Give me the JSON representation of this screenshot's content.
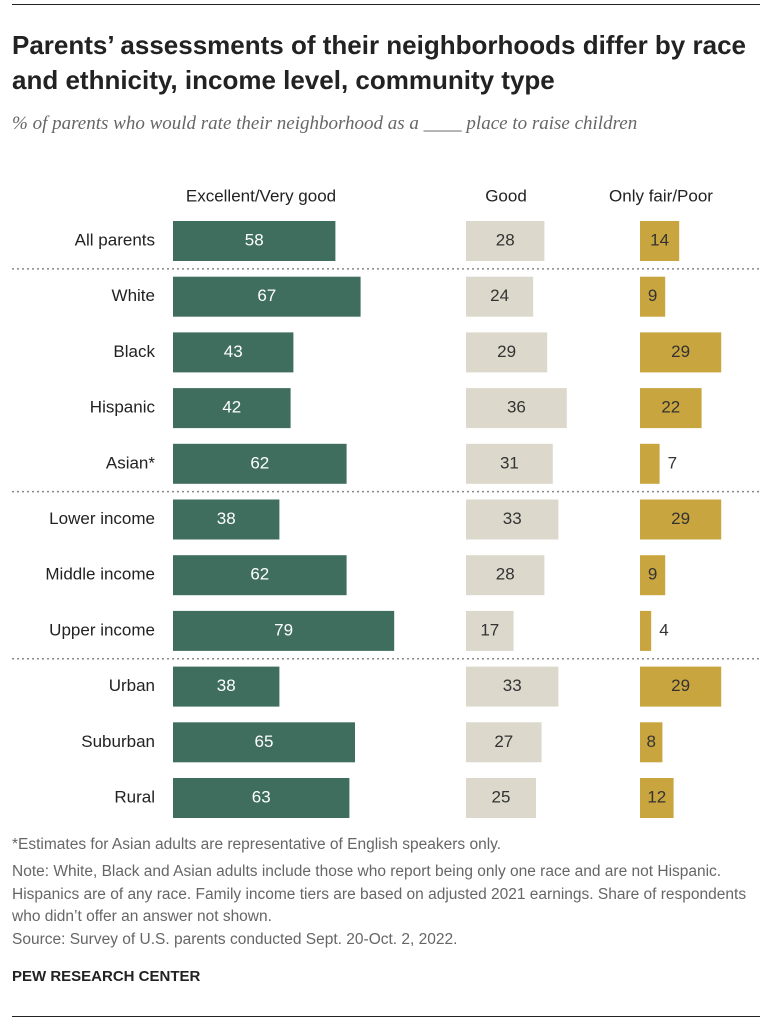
{
  "chart_data": {
    "type": "bar",
    "title": "Parents’ assessments of their neighborhoods differ by race and ethnicity, income level, community type",
    "subtitle": "% of parents who would rate their neighborhood as a ____ place to raise children",
    "categories": [
      "All parents",
      "White",
      "Black",
      "Hispanic",
      "Asian*",
      "Lower income",
      "Middle income",
      "Upper income",
      "Urban",
      "Suburban",
      "Rural"
    ],
    "series": [
      {
        "name": "Excellent/Very good",
        "color": "#3f6e5f",
        "values": [
          58,
          67,
          43,
          42,
          62,
          38,
          62,
          79,
          38,
          65,
          63
        ]
      },
      {
        "name": "Good",
        "color": "#dcd9cc",
        "values": [
          28,
          24,
          29,
          36,
          31,
          33,
          28,
          17,
          33,
          27,
          25
        ]
      },
      {
        "name": "Only fair/Poor",
        "color": "#c9a53f",
        "values": [
          14,
          9,
          29,
          22,
          7,
          29,
          9,
          4,
          29,
          8,
          12
        ]
      }
    ],
    "footnote": "*Estimates for Asian adults are representative of English speakers only.",
    "note": "Note: White, Black and Asian adults include those who report being only one race and are not Hispanic. Hispanics are of any race. Family income tiers are based on adjusted 2021 earnings. Share of respondents who didn’t offer an answer not shown.",
    "source": "Source: Survey of U.S. parents conducted Sept. 20-Oct. 2, 2022.",
    "credit": "PEW RESEARCH CENTER"
  }
}
